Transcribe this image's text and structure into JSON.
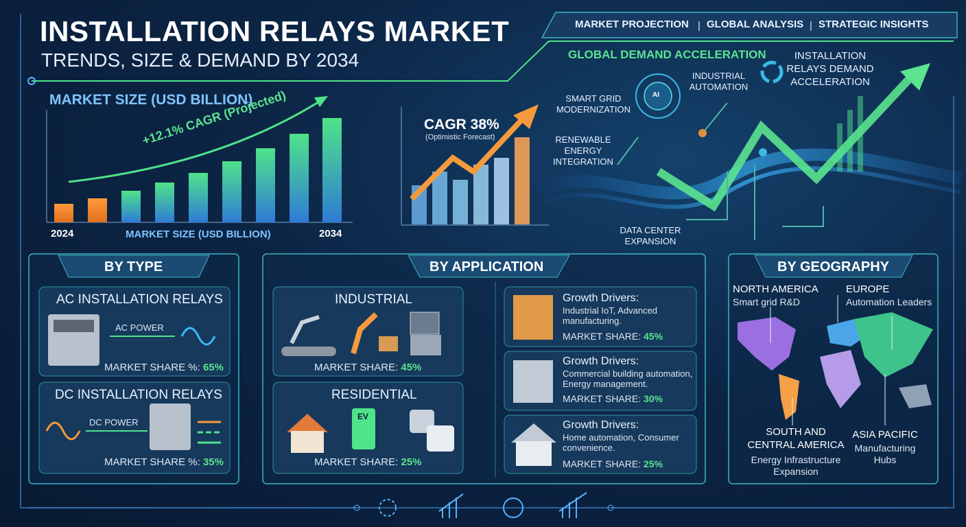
{
  "header": {
    "title": "INSTALLATION RELAYS MARKET",
    "subtitle": "TRENDS, SIZE & DEMAND BY 2034"
  },
  "top_banner": [
    "MARKET PROJECTION",
    "GLOBAL ANALYSIS",
    "STRATEGIC INSIGHTS"
  ],
  "market_size": {
    "title": "MARKET SIZE (USD BILLION)",
    "cagr_label": "+12.1% CAGR (Projected)",
    "start_year": "2024",
    "end_year": "2034",
    "axis_label": "MARKET SIZE (USD BILLION)"
  },
  "cagr_panel": {
    "title": "CAGR 38%",
    "note": "(Optimistic Forecast)"
  },
  "demand": {
    "title": "GLOBAL DEMAND ACCELERATION",
    "ai_icon": "AI",
    "labels": [
      "INSTALLATION RELAYS DEMAND ACCELERATION",
      "INDUSTRIAL AUTOMATION",
      "SMART GRID MODERNIZATION",
      "RENEWABLE ENERGY INTEGRATION",
      "DATA CENTER EXPANSION"
    ]
  },
  "by_type": {
    "heading": "BY TYPE",
    "items": [
      {
        "title": "AC INSTALLATION RELAYS",
        "power": "AC POWER",
        "share_label": "MARKET SHARE %:",
        "share": "65%"
      },
      {
        "title": "DC INSTALLATION RELAYS",
        "power": "DC POWER",
        "share_label": "MARKET SHARE %:",
        "share": "35%"
      }
    ]
  },
  "by_application": {
    "heading": "BY APPLICATION",
    "segments": [
      {
        "title": "INDUSTRIAL",
        "share_label": "MARKET SHARE:",
        "share": "45%"
      },
      {
        "title": "RESIDENTIAL",
        "share_label": "MARKET SHARE:",
        "share": "25%",
        "ev_label": "EV"
      }
    ],
    "drivers": [
      {
        "heading": "Growth Drivers:",
        "text": "Industrial IoT, Advanced manufacturing.",
        "share_label": "MARKET SHARE:",
        "share": "45%"
      },
      {
        "heading": "Growth Drivers:",
        "text": "Commercial building automation, Energy management.",
        "share_label": "MARKET SHARE:",
        "share": "30%"
      },
      {
        "heading": "Growth Drivers:",
        "text": "Home automation, Consumer convenience.",
        "share_label": "MARKET SHARE:",
        "share": "25%"
      }
    ]
  },
  "by_geography": {
    "heading": "BY GEOGRAPHY",
    "regions": [
      {
        "name": "NORTH AMERICA",
        "note": "Smart grid R&D"
      },
      {
        "name": "EUROPE",
        "note": "Automation Leaders"
      },
      {
        "name": "SOUTH AND CENTRAL AMERICA",
        "note": "Energy Infrastructure Expansion"
      },
      {
        "name": "ASIA PACIFIC",
        "note": "Manufacturing Hubs"
      }
    ]
  }
}
